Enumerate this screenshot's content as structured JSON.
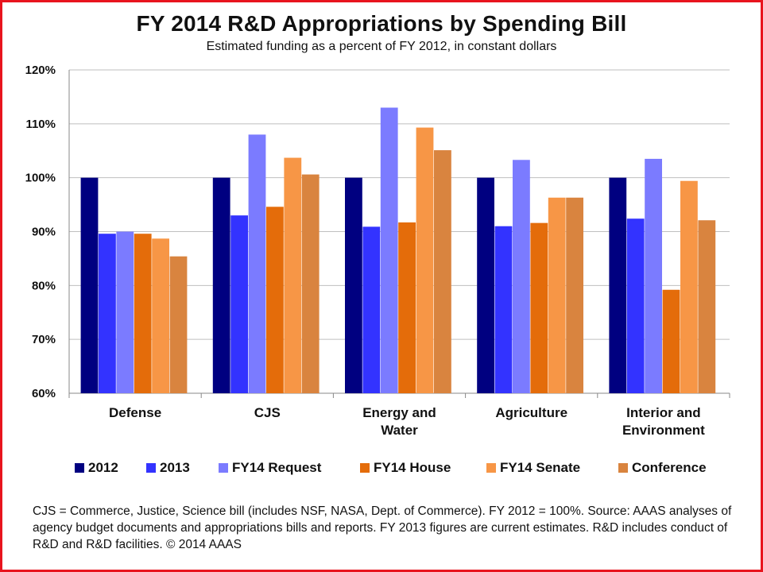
{
  "chart_data": {
    "type": "bar",
    "title": "FY 2014 R&D Appropriations by Spending Bill",
    "subtitle": "Estimated funding as a percent of FY 2012, in constant dollars",
    "categories": [
      [
        "Defense"
      ],
      [
        "CJS"
      ],
      [
        "Energy and",
        "Water"
      ],
      [
        "Agriculture"
      ],
      [
        "Interior and",
        "Environment"
      ]
    ],
    "series": [
      {
        "name": "2012",
        "color": "#000080",
        "values": [
          100,
          100,
          100,
          100,
          100
        ]
      },
      {
        "name": "2013",
        "color": "#3333ff",
        "values": [
          89.6,
          93.0,
          90.9,
          91.0,
          92.4
        ]
      },
      {
        "name": "FY14 Request",
        "color": "#7b7bff",
        "values": [
          90.0,
          108.0,
          113.0,
          103.3,
          103.5
        ]
      },
      {
        "name": "FY14 House",
        "color": "#e46c0a",
        "values": [
          89.6,
          94.6,
          91.7,
          91.6,
          79.2
        ]
      },
      {
        "name": "FY14 Senate",
        "color": "#f79646",
        "values": [
          88.7,
          103.7,
          109.3,
          96.3,
          99.4
        ]
      },
      {
        "name": "Conference",
        "color": "#d9843f",
        "values": [
          85.4,
          100.6,
          105.1,
          96.3,
          92.1
        ]
      }
    ],
    "ylim": [
      60,
      120
    ],
    "yticks": [
      "60%",
      "70%",
      "80%",
      "90%",
      "100%",
      "110%",
      "120%"
    ],
    "grid": true,
    "legend_position": "bottom"
  },
  "footnote": "CJS = Commerce, Justice, Science bill (includes NSF, NASA, Dept. of Commerce). FY 2012 = 100%. Source: AAAS analyses of agency budget documents and appropriations bills and reports. FY 2013 figures are current estimates. R&D includes conduct of R&D and R&D facilities. © 2014 AAAS",
  "colors": {
    "border": "#e8141e",
    "grid": "#bfbfbf",
    "axis": "#888888"
  }
}
